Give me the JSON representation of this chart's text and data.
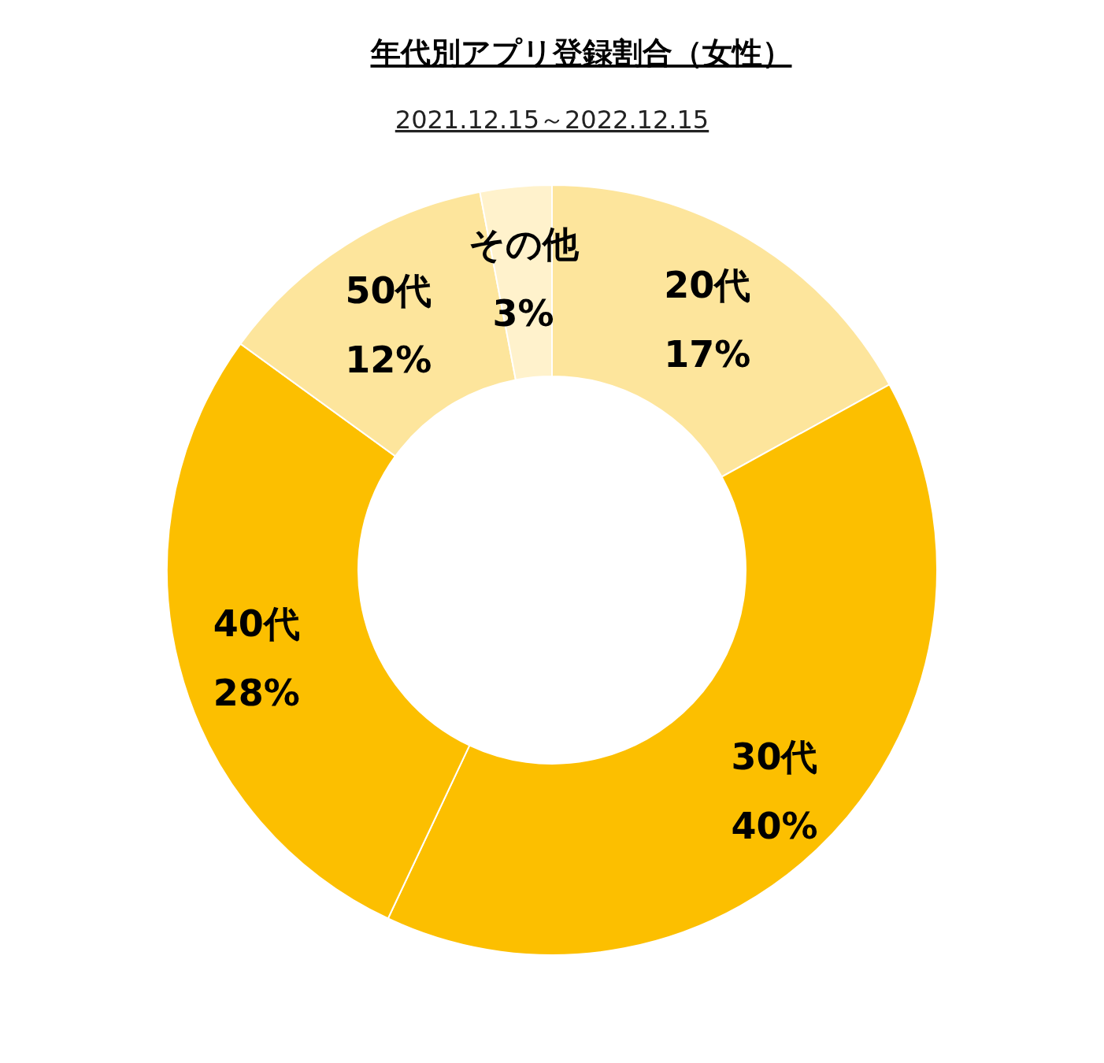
{
  "chart_data": {
    "type": "donut",
    "title": "年代別アプリ登録割合（女性）",
    "subtitle": "2021.12.15～2022.12.15",
    "categories": [
      "20代",
      "30代",
      "40代",
      "50代",
      "その他"
    ],
    "values": [
      17,
      40,
      28,
      12,
      3
    ],
    "value_labels": [
      "17%",
      "40%",
      "28%",
      "12%",
      "3%"
    ],
    "colors": [
      "#fde59c",
      "#fcbf00",
      "#fcbf00",
      "#fde59c",
      "#fff2cc"
    ],
    "legend": false
  }
}
